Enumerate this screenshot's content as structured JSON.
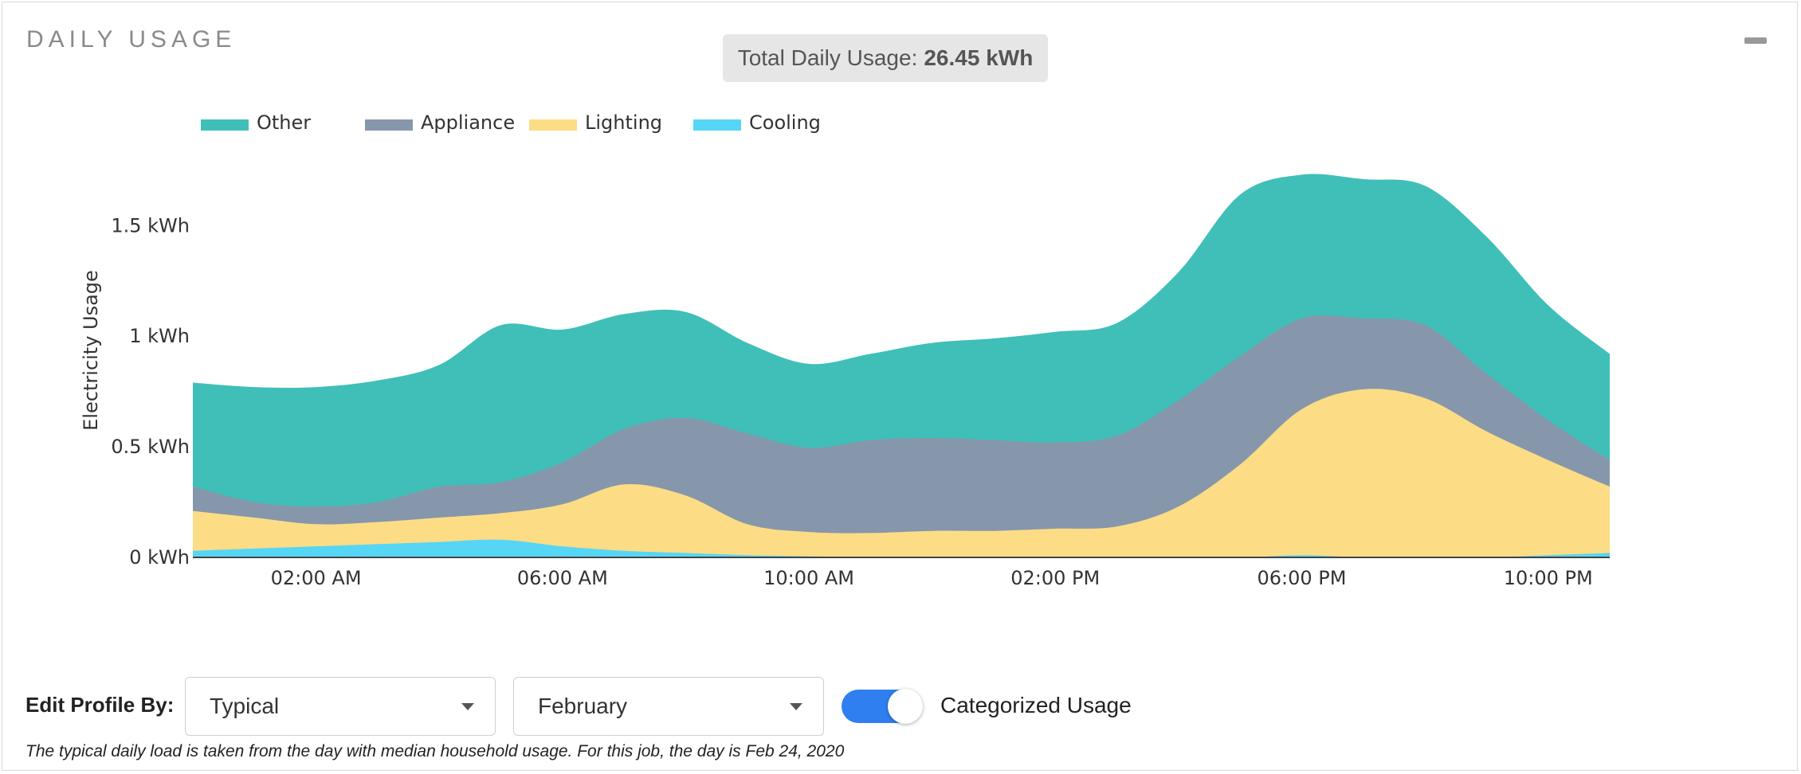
{
  "panel": {
    "title": "DAILY USAGE",
    "total_label": "Total Daily Usage:",
    "total_value": "26.45 kWh"
  },
  "controls": {
    "edit_label": "Edit Profile By:",
    "profile_select": "Typical",
    "month_select": "February",
    "toggle_on": true,
    "toggle_label": "Categorized Usage",
    "footnote": "The typical daily load is taken from the day with median household usage. For this job, the day is Feb 24, 2020"
  },
  "icons": {
    "collapse": "minus-icon",
    "dropdown": "chevron-down-icon"
  },
  "chart_data": {
    "type": "area",
    "stacked": true,
    "ylabel": "Electricity Usage",
    "xlabel": "",
    "ylim": [
      0,
      1.8
    ],
    "yticks": [
      {
        "value": 0,
        "label": "0 kWh"
      },
      {
        "value": 0.5,
        "label": "0.5 kWh"
      },
      {
        "value": 1,
        "label": "1 kWh"
      },
      {
        "value": 1.5,
        "label": "1.5 kWh"
      }
    ],
    "xlim": [
      0,
      23
    ],
    "xticks": [
      {
        "value": 2,
        "label": "02:00 AM"
      },
      {
        "value": 6,
        "label": "06:00 AM"
      },
      {
        "value": 10,
        "label": "10:00 AM"
      },
      {
        "value": 14,
        "label": "02:00 PM"
      },
      {
        "value": 18,
        "label": "06:00 PM"
      },
      {
        "value": 22,
        "label": "10:00 PM"
      }
    ],
    "x": [
      0,
      1,
      2,
      3,
      4,
      5,
      6,
      7,
      8,
      9,
      10,
      11,
      12,
      13,
      14,
      15,
      16,
      17,
      18,
      19,
      20,
      21,
      22,
      23
    ],
    "legend_position": "top-left",
    "series": [
      {
        "name": "Cooling",
        "color": "#56d6f5",
        "values": [
          0.03,
          0.04,
          0.05,
          0.06,
          0.07,
          0.08,
          0.05,
          0.03,
          0.02,
          0.01,
          0.005,
          0,
          0,
          0,
          0,
          0,
          0,
          0,
          0.01,
          0,
          0,
          0,
          0.01,
          0.02
        ]
      },
      {
        "name": "Lighting",
        "color": "#fcdc85",
        "values": [
          0.18,
          0.14,
          0.1,
          0.1,
          0.11,
          0.12,
          0.19,
          0.3,
          0.26,
          0.14,
          0.11,
          0.11,
          0.12,
          0.12,
          0.13,
          0.14,
          0.23,
          0.42,
          0.66,
          0.76,
          0.72,
          0.57,
          0.43,
          0.3
        ]
      },
      {
        "name": "Appliance",
        "color": "#8797ab",
        "values": [
          0.11,
          0.07,
          0.08,
          0.09,
          0.14,
          0.14,
          0.19,
          0.25,
          0.35,
          0.41,
          0.38,
          0.42,
          0.42,
          0.41,
          0.39,
          0.41,
          0.48,
          0.49,
          0.41,
          0.32,
          0.33,
          0.26,
          0.18,
          0.12
        ]
      },
      {
        "name": "Other",
        "color": "#3fbfb8",
        "values": [
          0.47,
          0.52,
          0.54,
          0.55,
          0.55,
          0.71,
          0.6,
          0.52,
          0.48,
          0.41,
          0.38,
          0.39,
          0.43,
          0.46,
          0.5,
          0.51,
          0.58,
          0.73,
          0.65,
          0.63,
          0.63,
          0.62,
          0.52,
          0.48
        ]
      }
    ]
  }
}
